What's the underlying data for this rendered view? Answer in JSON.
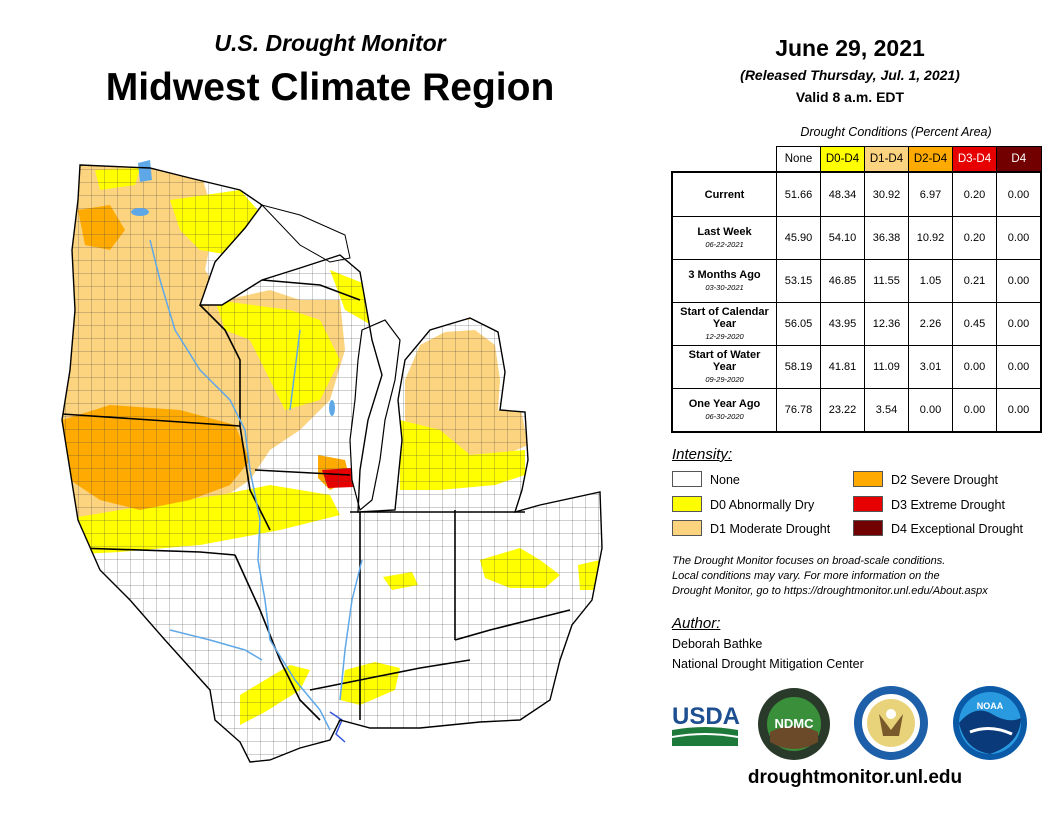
{
  "header": {
    "subtitle": "U.S. Drought Monitor",
    "title": "Midwest Climate Region",
    "date": "June 29, 2021",
    "released": "(Released Thursday, Jul. 1, 2021)",
    "valid": "Valid 8 a.m. EDT"
  },
  "table": {
    "caption": "Drought Conditions (Percent Area)",
    "columns": [
      "None",
      "D0-D4",
      "D1-D4",
      "D2-D4",
      "D3-D4",
      "D4"
    ],
    "column_colors": [
      "#ffffff",
      "#ffff00",
      "#fcd37f",
      "#ffaa00",
      "#e60000",
      "#730000"
    ],
    "column_text_colors": [
      "#000000",
      "#000000",
      "#000000",
      "#000000",
      "#ffffff",
      "#ffffff"
    ],
    "rows": [
      {
        "label": "Current",
        "date": "",
        "values": [
          "51.66",
          "48.34",
          "30.92",
          "6.97",
          "0.20",
          "0.00"
        ]
      },
      {
        "label": "Last Week",
        "date": "06-22-2021",
        "values": [
          "45.90",
          "54.10",
          "36.38",
          "10.92",
          "0.20",
          "0.00"
        ]
      },
      {
        "label": "3 Months Ago",
        "date": "03-30-2021",
        "values": [
          "53.15",
          "46.85",
          "11.55",
          "1.05",
          "0.21",
          "0.00"
        ]
      },
      {
        "label": "Start of Calendar Year",
        "date": "12-29-2020",
        "values": [
          "56.05",
          "43.95",
          "12.36",
          "2.26",
          "0.45",
          "0.00"
        ]
      },
      {
        "label": "Start of Water Year",
        "date": "09-29-2020",
        "values": [
          "58.19",
          "41.81",
          "11.09",
          "3.01",
          "0.00",
          "0.00"
        ]
      },
      {
        "label": "One Year Ago",
        "date": "06-30-2020",
        "values": [
          "76.78",
          "23.22",
          "3.54",
          "0.00",
          "0.00",
          "0.00"
        ]
      }
    ]
  },
  "legend": {
    "title": "Intensity:",
    "items": [
      {
        "label": "None",
        "color": "#ffffff"
      },
      {
        "label": "D0 Abnormally Dry",
        "color": "#ffff00"
      },
      {
        "label": "D1 Moderate Drought",
        "color": "#fcd37f"
      },
      {
        "label": "D2 Severe Drought",
        "color": "#ffaa00"
      },
      {
        "label": "D3 Extreme Drought",
        "color": "#e60000"
      },
      {
        "label": "D4 Exceptional Drought",
        "color": "#730000"
      }
    ]
  },
  "note": {
    "line1": "The Drought Monitor focuses on broad-scale conditions.",
    "line2": "Local conditions may vary. For more information on the",
    "line3": "Drought Monitor, go to https://droughtmonitor.unl.edu/About.aspx"
  },
  "author": {
    "title": "Author:",
    "name": "Deborah Bathke",
    "org": "National Drought Mitigation Center"
  },
  "logos": {
    "usda": "USDA",
    "ndmc": "NDMC",
    "noaa": "NOAA",
    "commerce": "commerce-seal-icon"
  },
  "footer": {
    "url": "droughtmonitor.unl.edu"
  },
  "colors": {
    "none": "#ffffff",
    "d0": "#ffff00",
    "d1": "#fcd37f",
    "d2": "#ffaa00",
    "d3": "#e60000",
    "d4": "#730000",
    "water": "#5fa8e8"
  }
}
